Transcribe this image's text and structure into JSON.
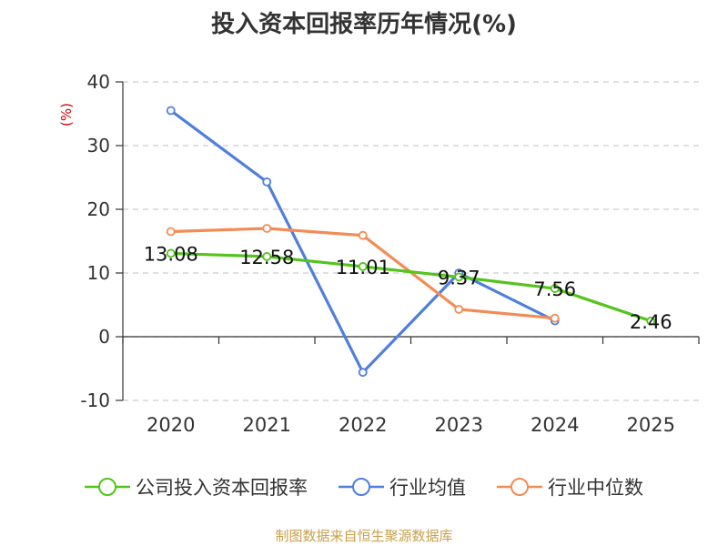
{
  "chart_data": {
    "type": "line",
    "title": "投入资本回报率历年情况(%)",
    "ylabel": "(%)",
    "xlabel": "",
    "categories": [
      "2020",
      "2021",
      "2022",
      "2023",
      "2024",
      "2025"
    ],
    "ylim": [
      -10,
      40
    ],
    "yticks": [
      -10,
      0,
      10,
      20,
      30,
      40
    ],
    "grid": true,
    "legend_position": "bottom",
    "series": [
      {
        "name": "公司投入资本回报率",
        "color": "#52c41a",
        "values": [
          13.08,
          12.58,
          11.01,
          9.37,
          7.56,
          2.46
        ],
        "labels": [
          "13.08",
          "12.58",
          "11.01",
          "9.37",
          "7.56",
          "2.46"
        ]
      },
      {
        "name": "行业均值",
        "color": "#4f7fdd",
        "values": [
          35.5,
          24.3,
          -5.6,
          10.0,
          2.5,
          null
        ]
      },
      {
        "name": "行业中位数",
        "color": "#f28c55",
        "values": [
          16.5,
          17.0,
          15.9,
          4.3,
          2.9,
          null
        ]
      }
    ]
  },
  "source": "制图数据来自恒生聚源数据库"
}
